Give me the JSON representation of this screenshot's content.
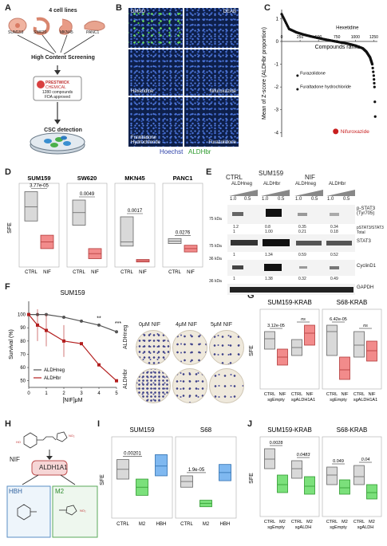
{
  "panel_labels": {
    "a": "A",
    "b": "B",
    "c": "C",
    "d": "D",
    "e": "E",
    "f": "F",
    "g": "G",
    "h": "H",
    "i": "I",
    "j": "J"
  },
  "panelA": {
    "title": "4 cell lines",
    "lines": [
      "SUM159",
      "SW620",
      "MKN45",
      "PANC1"
    ],
    "screening": "High Content Screening",
    "prestwick_brand": "PRESTWICK",
    "prestwick_sub": "CHEMICAL",
    "compounds": "1280 compounds",
    "fda": "FDA approved",
    "csc": "CSC detection"
  },
  "panelB": {
    "tiles": [
      "DMSO",
      "DEAB",
      "Hexetidine",
      "Nifuroxazide",
      "Furaltadone Hydrochloride",
      "Furazolidone"
    ],
    "legend_blue": "Hoechst",
    "legend_green": "ALDHbr"
  },
  "panelC": {
    "ylabel": "Mean of Z-score (ALDHbr proportion)",
    "xlabel": "Compounds ranks",
    "xticks": [
      "0",
      "250",
      "500",
      "750",
      "1000",
      "1250"
    ],
    "yticks": [
      "1",
      "0",
      "-1",
      "-2",
      "-3",
      "-4"
    ],
    "annotations": [
      "Hexetidine",
      "Furazolidone",
      "Furaltadone hydrochloride",
      "Nifuroxazide"
    ]
  },
  "panelD": {
    "ylabel": "SFE",
    "plots": [
      {
        "title": "SUM159",
        "p": "3.77e-05",
        "xl": [
          "CTRL",
          "NIF"
        ]
      },
      {
        "title": "SW620",
        "p": "0.0049",
        "xl": [
          "CTRL",
          "NIF"
        ]
      },
      {
        "title": "MKN45",
        "p": "0.0017",
        "xl": [
          "CTRL",
          "NIF"
        ]
      },
      {
        "title": "PANC1",
        "p": "0.0276",
        "xl": [
          "CTRL",
          "NIF"
        ]
      }
    ]
  },
  "panelE": {
    "cell": "SUM159",
    "ctrl": "CTRL",
    "nif": "NIF",
    "groups": [
      "ALDHneg",
      "ALDHbr",
      "ALDHneg",
      "ALDHbr"
    ],
    "doses": [
      "1.0",
      "0.5",
      "1.0",
      "0.5",
      "1.0",
      "0.5",
      "1.0",
      "0.5"
    ],
    "bands": [
      "p-STAT3 (Tyr705)",
      "STAT3",
      "CyclinD1",
      "GAPDH"
    ],
    "ratio_label": "pSTAT3/STAT3 Total",
    "row1_vals": [
      "1.2",
      "0.8",
      "0.35",
      "0.34",
      "1",
      "1.00",
      "0.21",
      "0.18"
    ],
    "row2_vals": [
      "1",
      "1.34",
      "0.59",
      "0.52"
    ],
    "row3_vals": [
      "1",
      "1.38",
      "0.32",
      "0.49"
    ],
    "kd": [
      "75 kDa",
      "75 kDa",
      "36 kDa",
      "36 kDa"
    ]
  },
  "panelF": {
    "title": "SUM159",
    "ylabel": "Survival (%)",
    "xlabel": "[NIF]μM",
    "legend": [
      "ALDHneg",
      "ALDHbr"
    ],
    "sig": [
      "**",
      "***"
    ],
    "dish_cols": [
      "0μM NIF",
      "4μM NIF",
      "5μM NIF"
    ],
    "dish_rows": [
      "ALDHneg",
      "ALDHbr"
    ]
  },
  "panelG": {
    "titles": [
      "SUM159-KRAB",
      "S68-KRAB"
    ],
    "ylabel": "SFE",
    "p_left": [
      "3.12e-05",
      "ns"
    ],
    "p_right": [
      "6.42e-05",
      "ns"
    ],
    "xl": [
      "CTRL",
      "NIF",
      "CTRL",
      "NIF"
    ],
    "groups": [
      "sgEmpty",
      "sgALDH1A1"
    ]
  },
  "panelH": {
    "nif": "NIF",
    "enzyme": "ALDH1A1",
    "hbh": "HBH",
    "m2": "M2"
  },
  "panelI": {
    "titles": [
      "SUM159",
      "S68"
    ],
    "ylabel": "SFE",
    "p": [
      "0.00201",
      "1.9e-05"
    ],
    "xl": [
      "CTRL",
      "M2",
      "HBH"
    ]
  },
  "panelJ": {
    "titles": [
      "SUM159-KRAB",
      "S68-KRAB"
    ],
    "ylabel": "SFE",
    "p_left": [
      "0.0028",
      "0.0483"
    ],
    "p_right": [
      "0.049",
      "0.04"
    ],
    "xl": [
      "CTRL",
      "M2",
      "CTRL",
      "M2"
    ],
    "groups_left": [
      "sgEmpty",
      "sgALDH"
    ],
    "groups_right": [
      "sgEmpty",
      "sgALDH"
    ]
  },
  "chart_data": [
    {
      "panel": "C",
      "type": "scatter",
      "x": [
        0,
        100,
        200,
        300,
        400,
        500,
        600,
        700,
        800,
        900,
        1000,
        1100,
        1150,
        1200,
        1230,
        1250,
        1260,
        1275
      ],
      "y": [
        1.2,
        0.55,
        0.4,
        0.3,
        0.22,
        0.15,
        0.08,
        0.02,
        -0.04,
        -0.1,
        -0.18,
        -0.3,
        -0.45,
        -0.7,
        -1.0,
        -1.5,
        -2.0,
        -3.95
      ],
      "xlim": [
        0,
        1300
      ],
      "ylim": [
        -4.2,
        1.4
      ]
    },
    {
      "panel": "F",
      "type": "line",
      "x": [
        0,
        0.5,
        1,
        2,
        3,
        4,
        5
      ],
      "series": [
        {
          "name": "ALDHneg",
          "values": [
            100,
            100,
            100,
            98,
            95,
            92,
            87
          ]
        },
        {
          "name": "ALDHbr",
          "values": [
            100,
            92,
            88,
            80,
            78,
            62,
            50
          ]
        }
      ],
      "ylim": [
        45,
        110
      ],
      "xlim": [
        0,
        5
      ]
    }
  ]
}
